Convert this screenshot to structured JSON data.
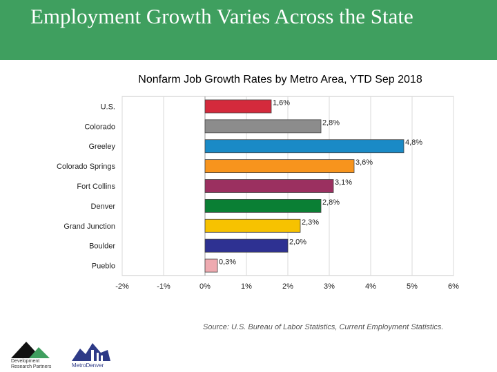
{
  "banner": {
    "title": "Employment Growth Varies Across the State",
    "color": "#3f9f5f"
  },
  "source_note": "Source: U.S. Bureau of Labor Statistics, Current Employment Statistics.",
  "logos": [
    {
      "name": "Development Research Partners",
      "line1": "Development",
      "line2": "Research Partners"
    },
    {
      "name": "Metro Denver",
      "text": "MetroDenver"
    }
  ],
  "chart_data": {
    "type": "bar",
    "orientation": "horizontal",
    "title": "Nonfarm Job Growth Rates by Metro Area, YTD Sep 2018",
    "categories": [
      "U.S.",
      "Colorado",
      "Greeley",
      "Colorado Springs",
      "Fort Collins",
      "Denver",
      "Grand Junction",
      "Boulder",
      "Pueblo"
    ],
    "values": [
      1.6,
      2.8,
      4.8,
      3.6,
      3.1,
      2.8,
      2.3,
      2.0,
      0.3
    ],
    "value_labels": [
      "1,6%",
      "2,8%",
      "4,8%",
      "3,6%",
      "3,1%",
      "2,8%",
      "2,3%",
      "2,0%",
      "0,3%"
    ],
    "colors": [
      "#d42a3c",
      "#8c8c8c",
      "#1a8ac6",
      "#f7941d",
      "#9b3060",
      "#0a7f34",
      "#f7c200",
      "#2e3192",
      "#eeaab0"
    ],
    "xlim": [
      -2,
      6
    ],
    "x_ticks": [
      -2,
      -1,
      0,
      1,
      2,
      3,
      4,
      5,
      6
    ],
    "x_tick_labels": [
      "-2%",
      "-1%",
      "0%",
      "1%",
      "2%",
      "3%",
      "4%",
      "5%",
      "6%"
    ],
    "grid": true,
    "legend": "none"
  }
}
